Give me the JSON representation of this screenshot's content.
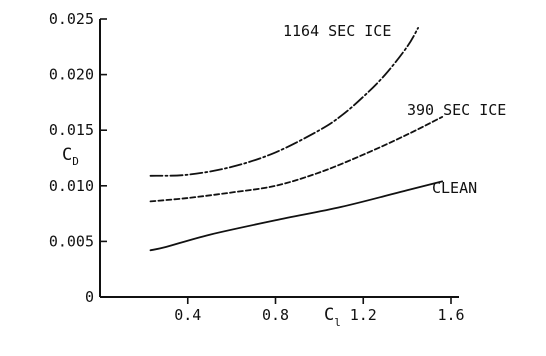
{
  "chart_data": {
    "type": "line",
    "title": "",
    "xlabel": "C",
    "xlabel_sub": "l",
    "ylabel": "C",
    "ylabel_sub": "D",
    "xlim": [
      0.0,
      1.6
    ],
    "ylim": [
      0.0,
      0.025
    ],
    "x_ticks": [
      0.4,
      0.8,
      1.2,
      1.6
    ],
    "x_tick_labels": [
      "0.4",
      "0.8",
      "1.2",
      "1.6"
    ],
    "y_ticks": [
      0,
      0.005,
      0.01,
      0.015,
      0.02,
      0.025
    ],
    "y_tick_labels": [
      "0",
      "0.005",
      "0.010",
      "0.015",
      "0.020",
      "0.025"
    ],
    "grid": false,
    "legend": "inline",
    "series": [
      {
        "name": "CLEAN",
        "style": "solid",
        "x": [
          0.23,
          0.3,
          0.5,
          0.8,
          1.1,
          1.4,
          1.56
        ],
        "y": [
          0.0042,
          0.0045,
          0.0056,
          0.0069,
          0.0081,
          0.0096,
          0.0104
        ]
      },
      {
        "name": "390 SEC ICE",
        "style": "dashed",
        "x": [
          0.23,
          0.4,
          0.6,
          0.8,
          1.0,
          1.2,
          1.4,
          1.56
        ],
        "y": [
          0.0086,
          0.0089,
          0.0094,
          0.01,
          0.0112,
          0.0128,
          0.0146,
          0.0162
        ]
      },
      {
        "name": "1164 SEC ICE",
        "style": "dashdot",
        "x": [
          0.23,
          0.4,
          0.6,
          0.8,
          1.0,
          1.1,
          1.2,
          1.3,
          1.4,
          1.45
        ],
        "y": [
          0.0109,
          0.011,
          0.0117,
          0.013,
          0.015,
          0.0163,
          0.018,
          0.02,
          0.0225,
          0.0242
        ]
      }
    ]
  }
}
